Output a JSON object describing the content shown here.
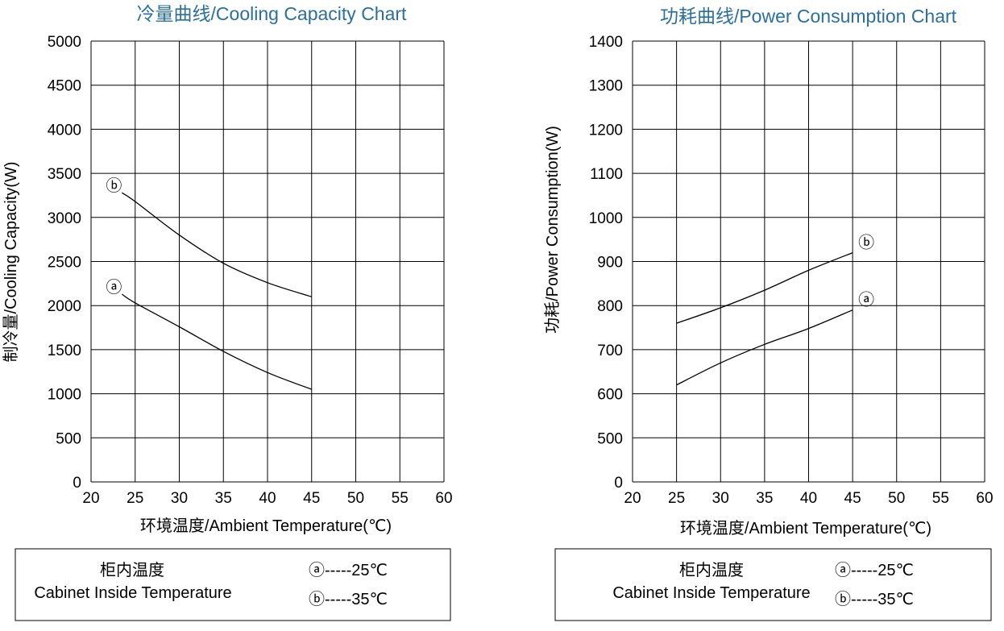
{
  "chart_data": [
    {
      "type": "line",
      "title": "冷量曲线/Cooling Capacity Chart",
      "xlabel": "环境温度/Ambient Temperature(℃)",
      "ylabel": "制冷量/Cooling  Capacity(W)",
      "xlim": [
        20,
        60
      ],
      "ylim": [
        0,
        5000
      ],
      "xticks": [
        20,
        25,
        30,
        35,
        40,
        45,
        50,
        55,
        60
      ],
      "yticks": [
        0,
        500,
        1000,
        1500,
        2000,
        2500,
        3000,
        3500,
        4000,
        4500,
        5000
      ],
      "grid": true,
      "series": [
        {
          "name": "ⓑ",
          "x": [
            23.5,
            25,
            30,
            35,
            40,
            45
          ],
          "y": [
            3280,
            3180,
            2800,
            2480,
            2260,
            2100
          ]
        },
        {
          "name": "ⓐ",
          "x": [
            23.5,
            25,
            30,
            35,
            40,
            45
          ],
          "y": [
            2130,
            2030,
            1760,
            1480,
            1240,
            1050
          ]
        }
      ],
      "legend": {
        "title_cn": "柜内温度",
        "title_en": "Cabinet Inside Temperature",
        "entries": [
          "ⓐ-----25℃",
          "ⓑ-----35℃"
        ]
      }
    },
    {
      "type": "line",
      "title": "功耗曲线/Power Consumption Chart",
      "xlabel": "环境温度/Ambient Temperature(℃)",
      "ylabel": "功耗/Power Consumption(W)",
      "xlim": [
        20,
        60
      ],
      "ylim": [
        0,
        1400
      ],
      "xticks": [
        20,
        25,
        30,
        35,
        40,
        45,
        50,
        55,
        60
      ],
      "yticks": [
        0,
        500,
        600,
        700,
        800,
        900,
        1000,
        1100,
        1200,
        1300,
        1400
      ],
      "grid": true,
      "series": [
        {
          "name": "ⓑ",
          "x": [
            25,
            30,
            35,
            40,
            45
          ],
          "y": [
            760,
            795,
            835,
            880,
            920
          ]
        },
        {
          "name": "ⓐ",
          "x": [
            25,
            30,
            35,
            40,
            45
          ],
          "y": [
            620,
            670,
            712,
            748,
            790
          ]
        }
      ],
      "legend": {
        "title_cn": "柜内温度",
        "title_en": "Cabinet Inside Temperature",
        "entries": [
          "ⓐ-----25℃",
          "ⓑ-----35℃"
        ]
      }
    }
  ]
}
